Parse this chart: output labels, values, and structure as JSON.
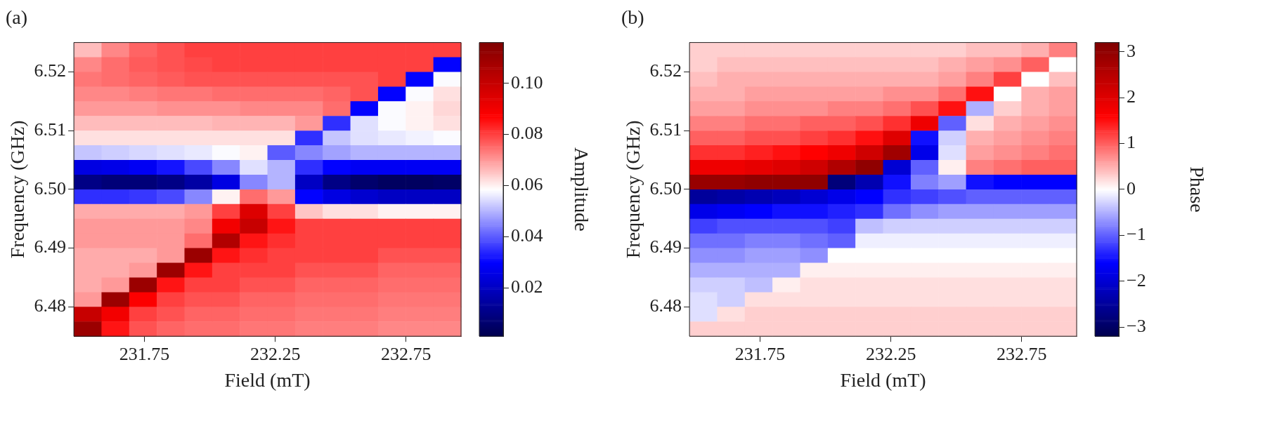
{
  "chart_data": [
    {
      "type": "heatmap",
      "title": "(a)",
      "xlabel": "Field (mT)",
      "ylabel": "Frequency (GHz)",
      "clabel": "Amplitude",
      "xlim": [
        231.48,
        232.96
      ],
      "ylim": [
        6.475,
        6.525
      ],
      "xticks": [
        231.75,
        232.25,
        232.75
      ],
      "yticks": [
        {
          "value": 6.48,
          "label": "6.48"
        },
        {
          "value": 6.49,
          "label": "6.49"
        },
        {
          "value": 6.5,
          "label": "6.50"
        },
        {
          "value": 6.51,
          "label": "6.51"
        },
        {
          "value": 6.52,
          "label": "6.52"
        }
      ],
      "clim": [
        0.001,
        0.116
      ],
      "cticks": [
        {
          "value": 0.02,
          "label": "0.02"
        },
        {
          "value": 0.04,
          "label": "0.04"
        },
        {
          "value": 0.06,
          "label": "0.06"
        },
        {
          "value": 0.08,
          "label": "0.08"
        },
        {
          "value": 0.1,
          "label": "0.10"
        }
      ],
      "cells": [
        [
          0.066,
          0.072,
          0.076,
          0.078,
          0.08,
          0.08,
          0.08,
          0.08,
          0.08,
          0.08,
          0.08,
          0.08,
          0.08,
          0.08
        ],
        [
          0.072,
          0.075,
          0.077,
          0.078,
          0.079,
          0.08,
          0.08,
          0.08,
          0.08,
          0.08,
          0.08,
          0.08,
          0.08,
          0.03
        ],
        [
          0.074,
          0.075,
          0.076,
          0.077,
          0.078,
          0.078,
          0.078,
          0.078,
          0.078,
          0.078,
          0.078,
          0.08,
          0.03,
          0.058
        ],
        [
          0.072,
          0.072,
          0.073,
          0.074,
          0.074,
          0.075,
          0.075,
          0.075,
          0.075,
          0.076,
          0.078,
          0.03,
          0.058,
          0.062
        ],
        [
          0.07,
          0.07,
          0.07,
          0.071,
          0.071,
          0.071,
          0.072,
          0.072,
          0.072,
          0.075,
          0.03,
          0.058,
          0.06,
          0.063
        ],
        [
          0.066,
          0.066,
          0.066,
          0.066,
          0.066,
          0.067,
          0.067,
          0.067,
          0.07,
          0.035,
          0.055,
          0.058,
          0.06,
          0.062
        ],
        [
          0.062,
          0.062,
          0.062,
          0.062,
          0.062,
          0.062,
          0.062,
          0.062,
          0.035,
          0.052,
          0.055,
          0.056,
          0.057,
          0.058
        ],
        [
          0.052,
          0.053,
          0.054,
          0.055,
          0.056,
          0.058,
          0.06,
          0.04,
          0.045,
          0.048,
          0.05,
          0.05,
          0.05,
          0.05
        ],
        [
          0.025,
          0.026,
          0.028,
          0.032,
          0.038,
          0.045,
          0.055,
          0.05,
          0.035,
          0.03,
          0.028,
          0.028,
          0.028,
          0.028
        ],
        [
          0.01,
          0.008,
          0.008,
          0.01,
          0.015,
          0.025,
          0.045,
          0.05,
          0.02,
          0.01,
          0.006,
          0.004,
          0.004,
          0.005
        ],
        [
          0.035,
          0.035,
          0.036,
          0.038,
          0.045,
          0.06,
          0.075,
          0.07,
          0.03,
          0.025,
          0.022,
          0.02,
          0.02,
          0.02
        ],
        [
          0.068,
          0.068,
          0.068,
          0.068,
          0.07,
          0.08,
          0.095,
          0.08,
          0.065,
          0.062,
          0.062,
          0.06,
          0.06,
          0.06
        ],
        [
          0.07,
          0.07,
          0.07,
          0.07,
          0.072,
          0.09,
          0.1,
          0.085,
          0.08,
          0.08,
          0.08,
          0.08,
          0.08,
          0.08
        ],
        [
          0.07,
          0.07,
          0.07,
          0.07,
          0.075,
          0.105,
          0.085,
          0.082,
          0.08,
          0.08,
          0.08,
          0.08,
          0.08,
          0.08
        ],
        [
          0.068,
          0.068,
          0.068,
          0.07,
          0.11,
          0.085,
          0.082,
          0.08,
          0.08,
          0.08,
          0.08,
          0.078,
          0.078,
          0.078
        ],
        [
          0.068,
          0.068,
          0.07,
          0.11,
          0.085,
          0.08,
          0.08,
          0.08,
          0.078,
          0.078,
          0.078,
          0.076,
          0.076,
          0.076
        ],
        [
          0.068,
          0.07,
          0.11,
          0.085,
          0.08,
          0.08,
          0.078,
          0.078,
          0.076,
          0.076,
          0.076,
          0.075,
          0.075,
          0.075
        ],
        [
          0.07,
          0.11,
          0.088,
          0.08,
          0.078,
          0.078,
          0.076,
          0.076,
          0.075,
          0.075,
          0.075,
          0.074,
          0.074,
          0.074
        ],
        [
          0.1,
          0.09,
          0.08,
          0.078,
          0.076,
          0.076,
          0.075,
          0.075,
          0.074,
          0.074,
          0.074,
          0.073,
          0.073,
          0.073
        ],
        [
          0.11,
          0.085,
          0.078,
          0.076,
          0.075,
          0.075,
          0.074,
          0.074,
          0.073,
          0.073,
          0.073,
          0.072,
          0.072,
          0.072
        ]
      ]
    },
    {
      "type": "heatmap",
      "title": "(b)",
      "xlabel": "Field (mT)",
      "ylabel": "Frequency (GHz)",
      "clabel": "Phase",
      "xlim": [
        231.48,
        232.96
      ],
      "ylim": [
        6.475,
        6.525
      ],
      "xticks": [
        231.75,
        232.25,
        232.75
      ],
      "yticks": [
        {
          "value": 6.48,
          "label": "6.48"
        },
        {
          "value": 6.49,
          "label": "6.49"
        },
        {
          "value": 6.5,
          "label": "6.50"
        },
        {
          "value": 6.51,
          "label": "6.51"
        },
        {
          "value": 6.52,
          "label": "6.52"
        }
      ],
      "clim": [
        -3.2,
        3.2
      ],
      "cticks": [
        {
          "value": -3,
          "label": "−3"
        },
        {
          "value": -2,
          "label": "−2"
        },
        {
          "value": -1,
          "label": "−1"
        },
        0,
        1,
        2,
        3
      ],
      "cells": [
        [
          0.3,
          0.3,
          0.3,
          0.3,
          0.3,
          0.3,
          0.3,
          0.3,
          0.3,
          0.3,
          0.4,
          0.4,
          0.5,
          0.8
        ],
        [
          0.3,
          0.4,
          0.4,
          0.4,
          0.4,
          0.4,
          0.4,
          0.4,
          0.4,
          0.5,
          0.6,
          0.7,
          1.0,
          0
        ],
        [
          0.4,
          0.5,
          0.5,
          0.5,
          0.5,
          0.5,
          0.5,
          0.5,
          0.5,
          0.6,
          0.8,
          1.2,
          0,
          0.4
        ],
        [
          0.5,
          0.5,
          0.6,
          0.6,
          0.6,
          0.6,
          0.6,
          0.7,
          0.7,
          0.9,
          1.5,
          0,
          0.5,
          0.6
        ],
        [
          0.6,
          0.6,
          0.7,
          0.7,
          0.7,
          0.8,
          0.8,
          0.9,
          1.1,
          1.5,
          -0.5,
          0.3,
          0.5,
          0.6
        ],
        [
          0.8,
          0.8,
          0.9,
          0.9,
          1.0,
          1.0,
          1.1,
          1.3,
          1.8,
          -1.0,
          0.2,
          0.5,
          0.6,
          0.7
        ],
        [
          1.0,
          1.0,
          1.1,
          1.1,
          1.2,
          1.3,
          1.5,
          2.0,
          -1.5,
          -0.3,
          0.5,
          0.6,
          0.7,
          0.8
        ],
        [
          1.3,
          1.3,
          1.4,
          1.5,
          1.6,
          1.8,
          2.2,
          2.8,
          -1.8,
          -0.2,
          0.6,
          0.7,
          0.8,
          0.9
        ],
        [
          1.8,
          1.8,
          1.9,
          2.0,
          2.2,
          2.6,
          3.0,
          -2.0,
          -1.0,
          0.1,
          0.8,
          0.9,
          1.0,
          1.0
        ],
        [
          2.9,
          2.9,
          3.0,
          3.0,
          3.0,
          -2.8,
          -2.3,
          -1.5,
          -0.8,
          -0.6,
          -1.5,
          -1.6,
          -1.6,
          -1.6
        ],
        [
          -2.5,
          -2.4,
          -2.3,
          -2.2,
          -2.0,
          -1.8,
          -1.6,
          -1.3,
          -1.2,
          -1.1,
          -1.0,
          -1.0,
          -1.0,
          -1.0
        ],
        [
          -1.8,
          -1.7,
          -1.6,
          -1.5,
          -1.5,
          -1.4,
          -1.3,
          -0.9,
          -0.7,
          -0.6,
          -0.6,
          -0.6,
          -0.6,
          -0.6
        ],
        [
          -1.2,
          -1.1,
          -1.1,
          -1.1,
          -1.1,
          -1.2,
          -0.4,
          -0.3,
          -0.3,
          -0.3,
          -0.3,
          -0.3,
          -0.3,
          -0.3
        ],
        [
          -0.9,
          -0.9,
          -0.8,
          -0.8,
          -0.9,
          -1.0,
          -0.1,
          -0.1,
          -0.1,
          -0.1,
          -0.1,
          -0.1,
          -0.1,
          -0.1
        ],
        [
          -0.7,
          -0.7,
          -0.6,
          -0.6,
          -0.7,
          0.0,
          0.0,
          0.0,
          0.0,
          0.0,
          0.0,
          0.0,
          0.0,
          0.0
        ],
        [
          -0.5,
          -0.5,
          -0.5,
          -0.5,
          0.1,
          0.1,
          0.1,
          0.1,
          0.1,
          0.1,
          0.1,
          0.1,
          0.1,
          0.1
        ],
        [
          -0.3,
          -0.3,
          -0.4,
          0.1,
          0.2,
          0.2,
          0.2,
          0.2,
          0.2,
          0.2,
          0.2,
          0.2,
          0.2,
          0.2
        ],
        [
          -0.2,
          -0.3,
          0.2,
          0.2,
          0.2,
          0.2,
          0.2,
          0.2,
          0.2,
          0.2,
          0.2,
          0.2,
          0.2,
          0.2
        ],
        [
          -0.2,
          0.2,
          0.3,
          0.3,
          0.3,
          0.3,
          0.3,
          0.3,
          0.3,
          0.3,
          0.3,
          0.3,
          0.3,
          0.3
        ],
        [
          0.3,
          0.3,
          0.3,
          0.3,
          0.3,
          0.3,
          0.3,
          0.3,
          0.3,
          0.3,
          0.3,
          0.3,
          0.3,
          0.3
        ]
      ]
    }
  ]
}
